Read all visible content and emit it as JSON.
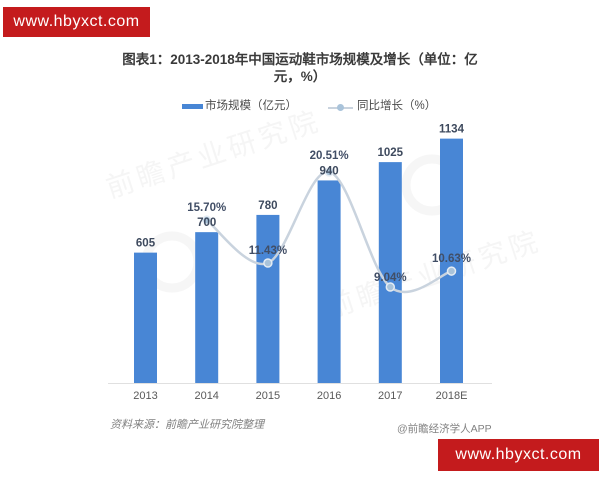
{
  "watermark_banner": {
    "text": "www.hbyxct.com",
    "bg_color": "#c41b1d",
    "text_color": "#ffffff"
  },
  "header": {
    "title_line1": "图表1：2013-2018年中国运动鞋市场规模及增长（单位：亿",
    "title_line2": "元，%）"
  },
  "legend": [
    {
      "label": "市场规模（亿元）",
      "type": "bar",
      "color": "#4886d5"
    },
    {
      "label": "同比增长（%）",
      "type": "line",
      "color": "#c9d3de"
    }
  ],
  "chart_data": {
    "type": "bar",
    "title": "图表1：2013-2018年中国运动鞋市场规模及增长（单位：亿元，%）",
    "categories": [
      "2013",
      "2014",
      "2015",
      "2016",
      "2017",
      "2018E"
    ],
    "series": [
      {
        "name": "市场规模（亿元）",
        "type": "bar",
        "color": "#4886d5",
        "values": [
          605,
          700,
          780,
          940,
          1025,
          1134
        ],
        "labels": [
          "605",
          "700",
          "780",
          "940",
          "1025",
          "1134"
        ]
      },
      {
        "name": "同比增长（%）",
        "type": "line",
        "color": "#c9d3de",
        "marker_fill": "#a9c3da",
        "marker_stroke": "#e4ecf4",
        "values": [
          null,
          15.7,
          11.43,
          20.51,
          9.04,
          10.63
        ],
        "labels": [
          null,
          "15.70%",
          "11.43%",
          "20.51%",
          "9.04%",
          "10.63%"
        ]
      }
    ],
    "value_label_color": "#3e4a5e",
    "pct_label_color": "#414e66",
    "axis_label_color": "#595959",
    "ylim_left": [
      0,
      1200
    ],
    "ylim_right_pct": [
      0,
      25
    ],
    "grid": false,
    "legend_position": "top"
  },
  "watermark_text": "前瞻产业研究院",
  "footer": {
    "source": "资料来源：前瞻产业研究院整理",
    "credit": "@前瞻经济学人APP"
  }
}
